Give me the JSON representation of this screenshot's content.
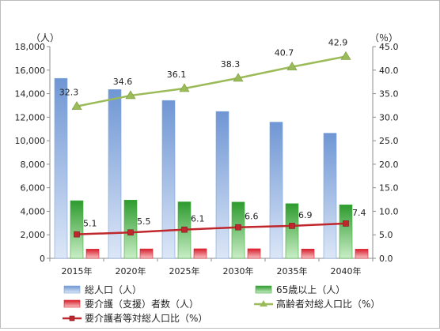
{
  "chart_data": {
    "type": "bar",
    "categories": [
      "2015年",
      "2020年",
      "2025年",
      "2030年",
      "2035年",
      "2040年"
    ],
    "series": [
      {
        "name": "総人口（人）",
        "kind": "bar",
        "axis": "left",
        "color": "#7ea6dc",
        "values": [
          15300,
          14350,
          13420,
          12480,
          11580,
          10640
        ]
      },
      {
        "name": "65歳以上（人）",
        "kind": "bar",
        "axis": "left",
        "color": "#3fae3f",
        "values": [
          4900,
          4950,
          4800,
          4780,
          4650,
          4550
        ]
      },
      {
        "name": "要介護（支援）者数（人）",
        "kind": "bar",
        "axis": "left",
        "color": "#e0202c",
        "values": [
          780,
          800,
          810,
          810,
          790,
          780
        ]
      },
      {
        "name": "高齢者対総人口比（%）",
        "kind": "line",
        "axis": "right",
        "color": "#9bbb59",
        "marker": "triangle",
        "values": [
          32.3,
          34.6,
          36.1,
          38.3,
          40.7,
          42.9
        ],
        "labels": [
          "32.3",
          "34.6",
          "36.1",
          "38.3",
          "40.7",
          "42.9"
        ]
      },
      {
        "name": "要介護者等対総人口比（%）",
        "kind": "line",
        "axis": "right",
        "color": "#c0272d",
        "marker": "square",
        "values": [
          5.1,
          5.5,
          6.1,
          6.6,
          6.9,
          7.4
        ],
        "labels": [
          "5.1",
          "5.5",
          "6.1",
          "6.6",
          "6.9",
          "7.4"
        ]
      }
    ],
    "left_axis": {
      "unit": "（人）",
      "min": 0,
      "max": 18000,
      "step": 2000,
      "ticks": [
        "0",
        "2,000",
        "4,000",
        "6,000",
        "8,000",
        "10,000",
        "12,000",
        "14,000",
        "16,000",
        "18,000"
      ]
    },
    "right_axis": {
      "unit": "（％）",
      "min": 0,
      "max": 45,
      "step": 5,
      "ticks": [
        "0.0",
        "5.0",
        "10.0",
        "15.0",
        "20.0",
        "25.0",
        "30.0",
        "35.0",
        "40.0",
        "45.0"
      ]
    },
    "grid": false,
    "legend_position": "bottom"
  }
}
